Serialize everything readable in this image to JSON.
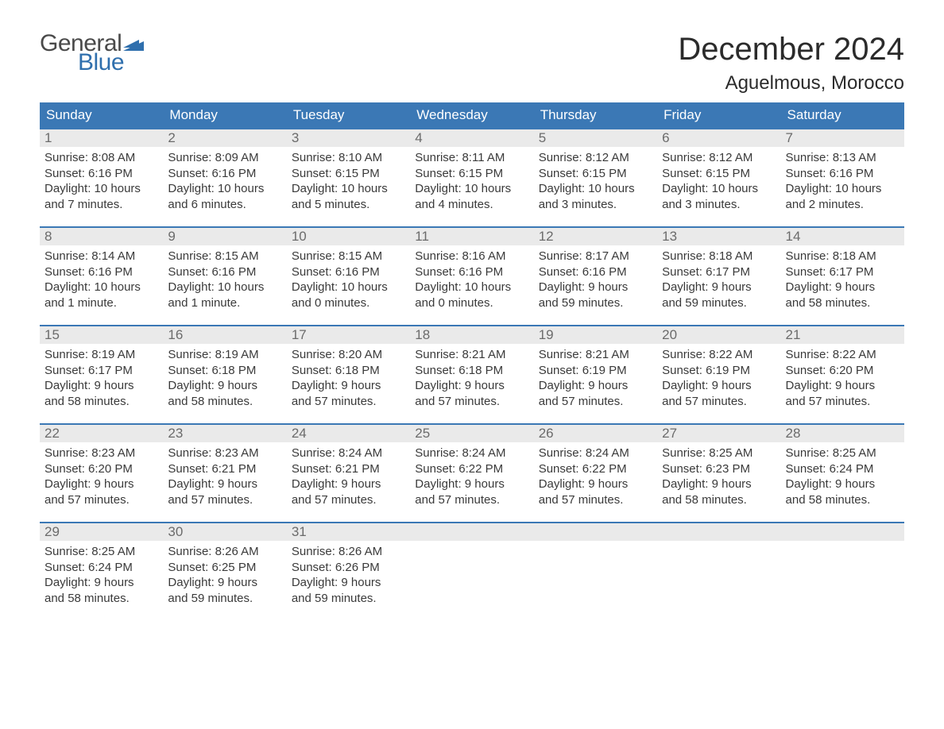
{
  "logo": {
    "word1": "General",
    "word2": "Blue",
    "word1_color": "#4a4a4a",
    "word2_color": "#2f6fad",
    "flag_color": "#2f6fad"
  },
  "title": "December 2024",
  "location": "Aguelmous, Morocco",
  "colors": {
    "header_bg": "#3b78b5",
    "header_text": "#ffffff",
    "daynum_bg": "#eaeaea",
    "daynum_text": "#6b6b6b",
    "body_text": "#3a3a3a",
    "rule": "#3b78b5",
    "page_bg": "#ffffff"
  },
  "typography": {
    "title_fontsize": 40,
    "location_fontsize": 24,
    "weekday_fontsize": 17,
    "daynum_fontsize": 17,
    "cell_fontsize": 15,
    "font_family": "Arial, Helvetica, sans-serif"
  },
  "weekdays": [
    "Sunday",
    "Monday",
    "Tuesday",
    "Wednesday",
    "Thursday",
    "Friday",
    "Saturday"
  ],
  "weeks": [
    [
      {
        "num": "1",
        "sunrise": "Sunrise: 8:08 AM",
        "sunset": "Sunset: 6:16 PM",
        "day1": "Daylight: 10 hours",
        "day2": "and 7 minutes."
      },
      {
        "num": "2",
        "sunrise": "Sunrise: 8:09 AM",
        "sunset": "Sunset: 6:16 PM",
        "day1": "Daylight: 10 hours",
        "day2": "and 6 minutes."
      },
      {
        "num": "3",
        "sunrise": "Sunrise: 8:10 AM",
        "sunset": "Sunset: 6:15 PM",
        "day1": "Daylight: 10 hours",
        "day2": "and 5 minutes."
      },
      {
        "num": "4",
        "sunrise": "Sunrise: 8:11 AM",
        "sunset": "Sunset: 6:15 PM",
        "day1": "Daylight: 10 hours",
        "day2": "and 4 minutes."
      },
      {
        "num": "5",
        "sunrise": "Sunrise: 8:12 AM",
        "sunset": "Sunset: 6:15 PM",
        "day1": "Daylight: 10 hours",
        "day2": "and 3 minutes."
      },
      {
        "num": "6",
        "sunrise": "Sunrise: 8:12 AM",
        "sunset": "Sunset: 6:15 PM",
        "day1": "Daylight: 10 hours",
        "day2": "and 3 minutes."
      },
      {
        "num": "7",
        "sunrise": "Sunrise: 8:13 AM",
        "sunset": "Sunset: 6:16 PM",
        "day1": "Daylight: 10 hours",
        "day2": "and 2 minutes."
      }
    ],
    [
      {
        "num": "8",
        "sunrise": "Sunrise: 8:14 AM",
        "sunset": "Sunset: 6:16 PM",
        "day1": "Daylight: 10 hours",
        "day2": "and 1 minute."
      },
      {
        "num": "9",
        "sunrise": "Sunrise: 8:15 AM",
        "sunset": "Sunset: 6:16 PM",
        "day1": "Daylight: 10 hours",
        "day2": "and 1 minute."
      },
      {
        "num": "10",
        "sunrise": "Sunrise: 8:15 AM",
        "sunset": "Sunset: 6:16 PM",
        "day1": "Daylight: 10 hours",
        "day2": "and 0 minutes."
      },
      {
        "num": "11",
        "sunrise": "Sunrise: 8:16 AM",
        "sunset": "Sunset: 6:16 PM",
        "day1": "Daylight: 10 hours",
        "day2": "and 0 minutes."
      },
      {
        "num": "12",
        "sunrise": "Sunrise: 8:17 AM",
        "sunset": "Sunset: 6:16 PM",
        "day1": "Daylight: 9 hours",
        "day2": "and 59 minutes."
      },
      {
        "num": "13",
        "sunrise": "Sunrise: 8:18 AM",
        "sunset": "Sunset: 6:17 PM",
        "day1": "Daylight: 9 hours",
        "day2": "and 59 minutes."
      },
      {
        "num": "14",
        "sunrise": "Sunrise: 8:18 AM",
        "sunset": "Sunset: 6:17 PM",
        "day1": "Daylight: 9 hours",
        "day2": "and 58 minutes."
      }
    ],
    [
      {
        "num": "15",
        "sunrise": "Sunrise: 8:19 AM",
        "sunset": "Sunset: 6:17 PM",
        "day1": "Daylight: 9 hours",
        "day2": "and 58 minutes."
      },
      {
        "num": "16",
        "sunrise": "Sunrise: 8:19 AM",
        "sunset": "Sunset: 6:18 PM",
        "day1": "Daylight: 9 hours",
        "day2": "and 58 minutes."
      },
      {
        "num": "17",
        "sunrise": "Sunrise: 8:20 AM",
        "sunset": "Sunset: 6:18 PM",
        "day1": "Daylight: 9 hours",
        "day2": "and 57 minutes."
      },
      {
        "num": "18",
        "sunrise": "Sunrise: 8:21 AM",
        "sunset": "Sunset: 6:18 PM",
        "day1": "Daylight: 9 hours",
        "day2": "and 57 minutes."
      },
      {
        "num": "19",
        "sunrise": "Sunrise: 8:21 AM",
        "sunset": "Sunset: 6:19 PM",
        "day1": "Daylight: 9 hours",
        "day2": "and 57 minutes."
      },
      {
        "num": "20",
        "sunrise": "Sunrise: 8:22 AM",
        "sunset": "Sunset: 6:19 PM",
        "day1": "Daylight: 9 hours",
        "day2": "and 57 minutes."
      },
      {
        "num": "21",
        "sunrise": "Sunrise: 8:22 AM",
        "sunset": "Sunset: 6:20 PM",
        "day1": "Daylight: 9 hours",
        "day2": "and 57 minutes."
      }
    ],
    [
      {
        "num": "22",
        "sunrise": "Sunrise: 8:23 AM",
        "sunset": "Sunset: 6:20 PM",
        "day1": "Daylight: 9 hours",
        "day2": "and 57 minutes."
      },
      {
        "num": "23",
        "sunrise": "Sunrise: 8:23 AM",
        "sunset": "Sunset: 6:21 PM",
        "day1": "Daylight: 9 hours",
        "day2": "and 57 minutes."
      },
      {
        "num": "24",
        "sunrise": "Sunrise: 8:24 AM",
        "sunset": "Sunset: 6:21 PM",
        "day1": "Daylight: 9 hours",
        "day2": "and 57 minutes."
      },
      {
        "num": "25",
        "sunrise": "Sunrise: 8:24 AM",
        "sunset": "Sunset: 6:22 PM",
        "day1": "Daylight: 9 hours",
        "day2": "and 57 minutes."
      },
      {
        "num": "26",
        "sunrise": "Sunrise: 8:24 AM",
        "sunset": "Sunset: 6:22 PM",
        "day1": "Daylight: 9 hours",
        "day2": "and 57 minutes."
      },
      {
        "num": "27",
        "sunrise": "Sunrise: 8:25 AM",
        "sunset": "Sunset: 6:23 PM",
        "day1": "Daylight: 9 hours",
        "day2": "and 58 minutes."
      },
      {
        "num": "28",
        "sunrise": "Sunrise: 8:25 AM",
        "sunset": "Sunset: 6:24 PM",
        "day1": "Daylight: 9 hours",
        "day2": "and 58 minutes."
      }
    ],
    [
      {
        "num": "29",
        "sunrise": "Sunrise: 8:25 AM",
        "sunset": "Sunset: 6:24 PM",
        "day1": "Daylight: 9 hours",
        "day2": "and 58 minutes."
      },
      {
        "num": "30",
        "sunrise": "Sunrise: 8:26 AM",
        "sunset": "Sunset: 6:25 PM",
        "day1": "Daylight: 9 hours",
        "day2": "and 59 minutes."
      },
      {
        "num": "31",
        "sunrise": "Sunrise: 8:26 AM",
        "sunset": "Sunset: 6:26 PM",
        "day1": "Daylight: 9 hours",
        "day2": "and 59 minutes."
      },
      {
        "num": "",
        "sunrise": "",
        "sunset": "",
        "day1": "",
        "day2": ""
      },
      {
        "num": "",
        "sunrise": "",
        "sunset": "",
        "day1": "",
        "day2": ""
      },
      {
        "num": "",
        "sunrise": "",
        "sunset": "",
        "day1": "",
        "day2": ""
      },
      {
        "num": "",
        "sunrise": "",
        "sunset": "",
        "day1": "",
        "day2": ""
      }
    ]
  ]
}
